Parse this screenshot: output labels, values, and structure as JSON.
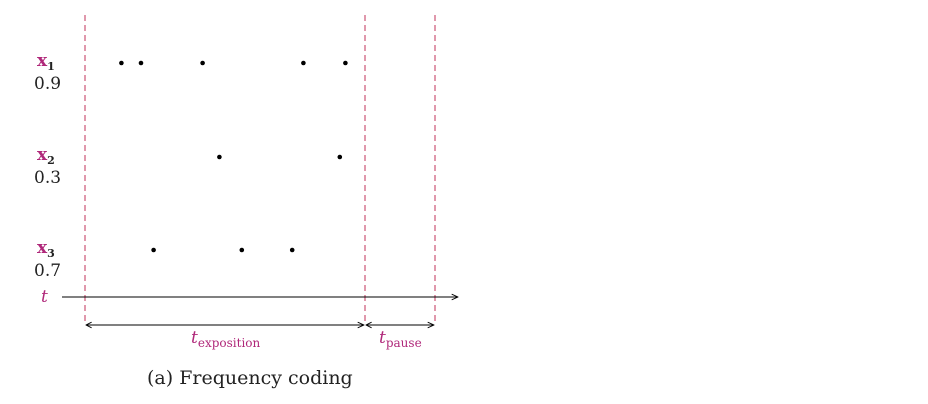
{
  "figure": {
    "caption": "(a) Frequency coding",
    "time_axis_label": "t",
    "exposition_label": {
      "base": "t",
      "subscript": "exposition"
    },
    "pause_label": {
      "base": "t",
      "subscript": "pause"
    }
  },
  "neurons": [
    {
      "name": "x",
      "index": "1",
      "value": "0.9",
      "spike_times": [
        0.13,
        0.2,
        0.42,
        0.78,
        0.93
      ]
    },
    {
      "name": "x",
      "index": "2",
      "value": "0.3",
      "spike_times": [
        0.48,
        0.91
      ]
    },
    {
      "name": "x",
      "index": "3",
      "value": "0.7",
      "spike_times": [
        0.245,
        0.56,
        0.74
      ]
    }
  ]
}
